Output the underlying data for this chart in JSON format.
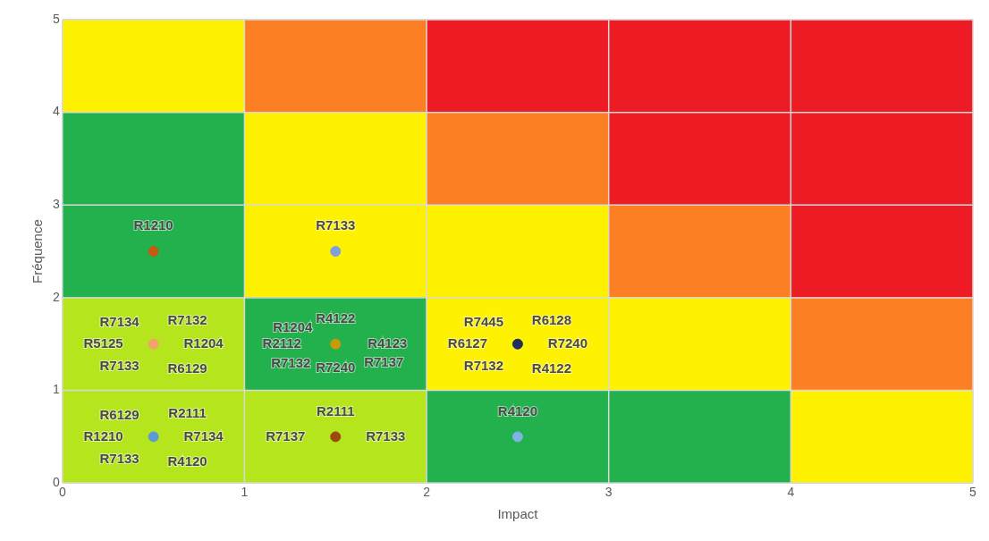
{
  "chart_data": {
    "type": "bar",
    "stacked": true,
    "xlabel": "Impact",
    "ylabel": "Fréquence",
    "xlim": [
      0,
      5
    ],
    "ylim": [
      0,
      5
    ],
    "xticks": [
      0,
      1,
      2,
      3,
      4,
      5
    ],
    "yticks": [
      0,
      1,
      2,
      3,
      4,
      5
    ],
    "grid": true,
    "legend": false,
    "marker": "circle",
    "series": [
      {
        "x": [
          0.5,
          1.5,
          2.5,
          3.5,
          4.5
        ],
        "values": [
          1,
          1,
          1,
          1,
          1
        ],
        "colors": [
          "#b5e61d",
          "#b5e61d",
          "#22b14c",
          "#22b14c",
          "#fff200"
        ]
      },
      {
        "x": [
          0.5,
          1.5,
          2.5,
          3.5,
          4.5
        ],
        "values": [
          1,
          1,
          1,
          1,
          1
        ],
        "colors": [
          "#b5e61d",
          "#22b14c",
          "#fff200",
          "#fff200",
          "#fd7f23"
        ]
      },
      {
        "x": [
          0.5,
          1.5,
          2.5,
          3.5,
          4.5
        ],
        "values": [
          1,
          1,
          1,
          1,
          1
        ],
        "colors": [
          "#22b14c",
          "#fff200",
          "#fff200",
          "#fd7f23",
          "#ed1c24"
        ]
      },
      {
        "x": [
          0.5,
          1.5,
          2.5,
          3.5,
          4.5
        ],
        "values": [
          1,
          1,
          1,
          1,
          1
        ],
        "colors": [
          "#22b14c",
          "#fff200",
          "#fd7f23",
          "#ed1c24",
          "#ed1c24"
        ]
      },
      {
        "x": [
          0.5,
          1.5,
          2.5,
          3.5,
          4.5
        ],
        "values": [
          1,
          1,
          1,
          1,
          1
        ],
        "colors": [
          "#fff200",
          "#fd7f23",
          "#ed1c24",
          "#ed1c24",
          "#ed1c24"
        ]
      },
      {
        "type": "scatter",
        "color": "#c55a11",
        "x": [
          0.5
        ],
        "values": [
          2.5
        ]
      },
      {
        "type": "scatter",
        "color": "#7f9fe0",
        "x": [
          1.5
        ],
        "values": [
          2.5
        ]
      },
      {
        "type": "scatter",
        "color": "#f4a16c",
        "x": [
          0.5
        ],
        "values": [
          1.5
        ]
      },
      {
        "type": "scatter",
        "color": "#c99a06",
        "x": [
          1.5
        ],
        "values": [
          1.5
        ]
      },
      {
        "type": "scatter",
        "color": "#1f3060",
        "x": [
          2.5
        ],
        "values": [
          1.5
        ]
      },
      {
        "type": "scatter",
        "color": "#5b9bd5",
        "x": [
          0.5
        ],
        "values": [
          0.5
        ]
      },
      {
        "type": "scatter",
        "color": "#9e480e",
        "x": [
          1.5
        ],
        "values": [
          0.5
        ]
      },
      {
        "type": "scatter",
        "color": "#7fb3e6",
        "x": [
          2.5
        ],
        "values": [
          0.5
        ]
      }
    ],
    "annotations": [
      {
        "text": "R1210",
        "x": 0.5,
        "y": 2.5
      },
      {
        "text": "R7133",
        "x": 1.5,
        "y": 2.5
      },
      {
        "text": "R7134",
        "x": 0.5,
        "y": 1.5
      },
      {
        "text": "R7132",
        "x": 0.5,
        "y": 1.5
      },
      {
        "text": "R5125",
        "x": 0.5,
        "y": 1.5
      },
      {
        "text": "R1204",
        "x": 0.5,
        "y": 1.5
      },
      {
        "text": "R7133",
        "x": 0.5,
        "y": 1.5
      },
      {
        "text": "R6129",
        "x": 0.5,
        "y": 1.5
      },
      {
        "text": "R1204",
        "x": 1.5,
        "y": 1.5
      },
      {
        "text": "R4122",
        "x": 1.5,
        "y": 1.5
      },
      {
        "text": "R2112",
        "x": 1.5,
        "y": 1.5
      },
      {
        "text": "R4123",
        "x": 1.5,
        "y": 1.5
      },
      {
        "text": "R7132",
        "x": 1.5,
        "y": 1.5
      },
      {
        "text": "R7240",
        "x": 1.5,
        "y": 1.5
      },
      {
        "text": "R7137",
        "x": 1.5,
        "y": 1.5
      },
      {
        "text": "R7445",
        "x": 2.5,
        "y": 1.5
      },
      {
        "text": "R6128",
        "x": 2.5,
        "y": 1.5
      },
      {
        "text": "R6127",
        "x": 2.5,
        "y": 1.5
      },
      {
        "text": "R7240",
        "x": 2.5,
        "y": 1.5
      },
      {
        "text": "R7132",
        "x": 2.5,
        "y": 1.5
      },
      {
        "text": "R4122",
        "x": 2.5,
        "y": 1.5
      },
      {
        "text": "R6129",
        "x": 0.5,
        "y": 0.5
      },
      {
        "text": "R2111",
        "x": 0.5,
        "y": 0.5
      },
      {
        "text": "R1210",
        "x": 0.5,
        "y": 0.5
      },
      {
        "text": "R7134",
        "x": 0.5,
        "y": 0.5
      },
      {
        "text": "R7133",
        "x": 0.5,
        "y": 0.5
      },
      {
        "text": "R4120",
        "x": 0.5,
        "y": 0.5
      },
      {
        "text": "R2111",
        "x": 1.5,
        "y": 0.5
      },
      {
        "text": "R7137",
        "x": 1.5,
        "y": 0.5
      },
      {
        "text": "R7133",
        "x": 1.5,
        "y": 0.5
      },
      {
        "text": "R4120",
        "x": 2.5,
        "y": 0.5
      }
    ]
  }
}
